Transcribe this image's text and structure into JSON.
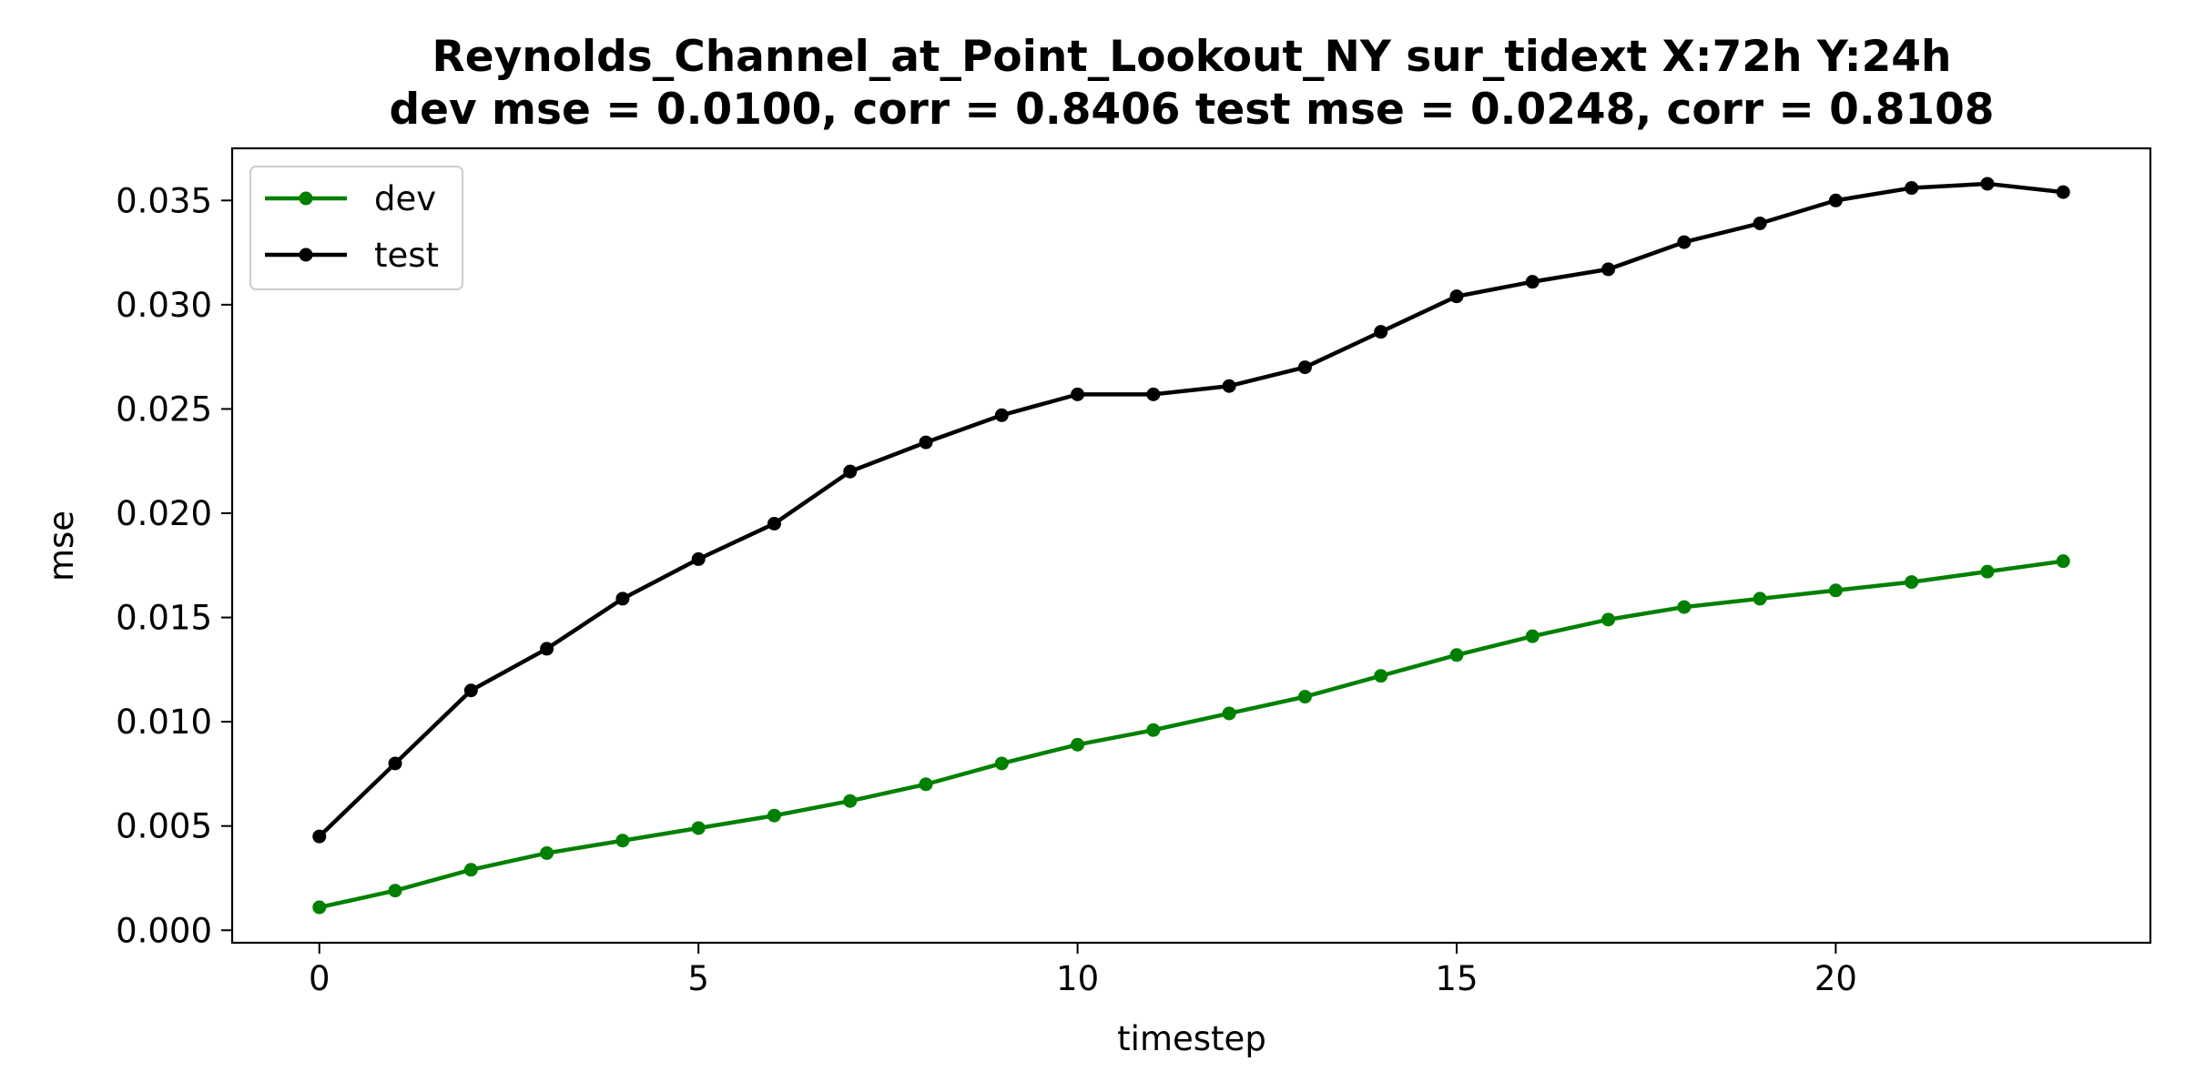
{
  "chart_data": {
    "type": "line",
    "title_line1": "Reynolds_Channel_at_Point_Lookout_NY   sur_tidext   X:72h   Y:24h",
    "title_line2": "dev mse = 0.0100, corr = 0.8406   test mse = 0.0248, corr = 0.8108",
    "xlabel": "timestep",
    "ylabel": "mse",
    "x": [
      0,
      1,
      2,
      3,
      4,
      5,
      6,
      7,
      8,
      9,
      10,
      11,
      12,
      13,
      14,
      15,
      16,
      17,
      18,
      19,
      20,
      21,
      22,
      23
    ],
    "xlim": [
      -1.15,
      24.15
    ],
    "ylim": [
      -0.0006,
      0.0375
    ],
    "xticks": [
      0,
      5,
      10,
      15,
      20
    ],
    "yticks": [
      0.0,
      0.005,
      0.01,
      0.015,
      0.02,
      0.025,
      0.03,
      0.035
    ],
    "ytick_labels": [
      "0.000",
      "0.005",
      "0.010",
      "0.015",
      "0.020",
      "0.025",
      "0.030",
      "0.035"
    ],
    "grid": false,
    "legend_position": "top-left",
    "series": [
      {
        "name": "dev",
        "color": "#008000",
        "marker": "circle",
        "values": [
          0.0011,
          0.0019,
          0.0029,
          0.0037,
          0.0043,
          0.0049,
          0.0055,
          0.0062,
          0.007,
          0.008,
          0.0089,
          0.0096,
          0.0104,
          0.0112,
          0.0122,
          0.0132,
          0.0141,
          0.0149,
          0.0155,
          0.0159,
          0.0163,
          0.0167,
          0.0172,
          0.0177
        ]
      },
      {
        "name": "test",
        "color": "#000000",
        "marker": "circle",
        "values": [
          0.0045,
          0.008,
          0.0115,
          0.0135,
          0.0159,
          0.0178,
          0.0195,
          0.022,
          0.0234,
          0.0247,
          0.0257,
          0.0257,
          0.0261,
          0.027,
          0.0287,
          0.0304,
          0.0311,
          0.0317,
          0.033,
          0.0339,
          0.035,
          0.0356,
          0.0358,
          0.0354
        ]
      }
    ]
  }
}
